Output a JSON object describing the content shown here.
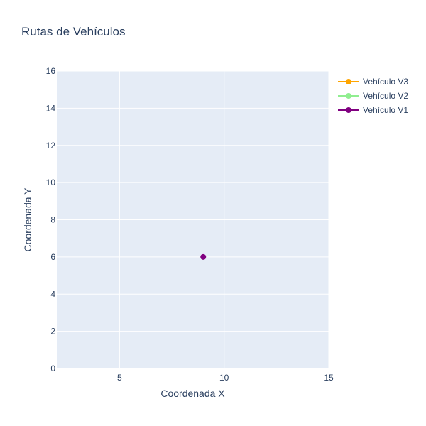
{
  "chart_data": {
    "type": "line",
    "title": "Rutas de Vehículos",
    "xlabel": "Coordenada X",
    "ylabel": "Coordenada Y",
    "xlim": [
      2,
      15
    ],
    "ylim": [
      0,
      16
    ],
    "xticks": [
      5,
      10,
      15
    ],
    "yticks": [
      0,
      2,
      4,
      6,
      8,
      10,
      12,
      14,
      16
    ],
    "grid": true,
    "legend_position": "right",
    "plot_background": "#e5ecf6",
    "series": [
      {
        "name": "Vehículo V3",
        "color": "#ffa500",
        "points": []
      },
      {
        "name": "Vehículo V2",
        "color": "#90ee90",
        "points": []
      },
      {
        "name": "Vehículo V1",
        "color": "#800080",
        "points": [
          {
            "x": 9,
            "y": 6
          }
        ]
      }
    ]
  }
}
